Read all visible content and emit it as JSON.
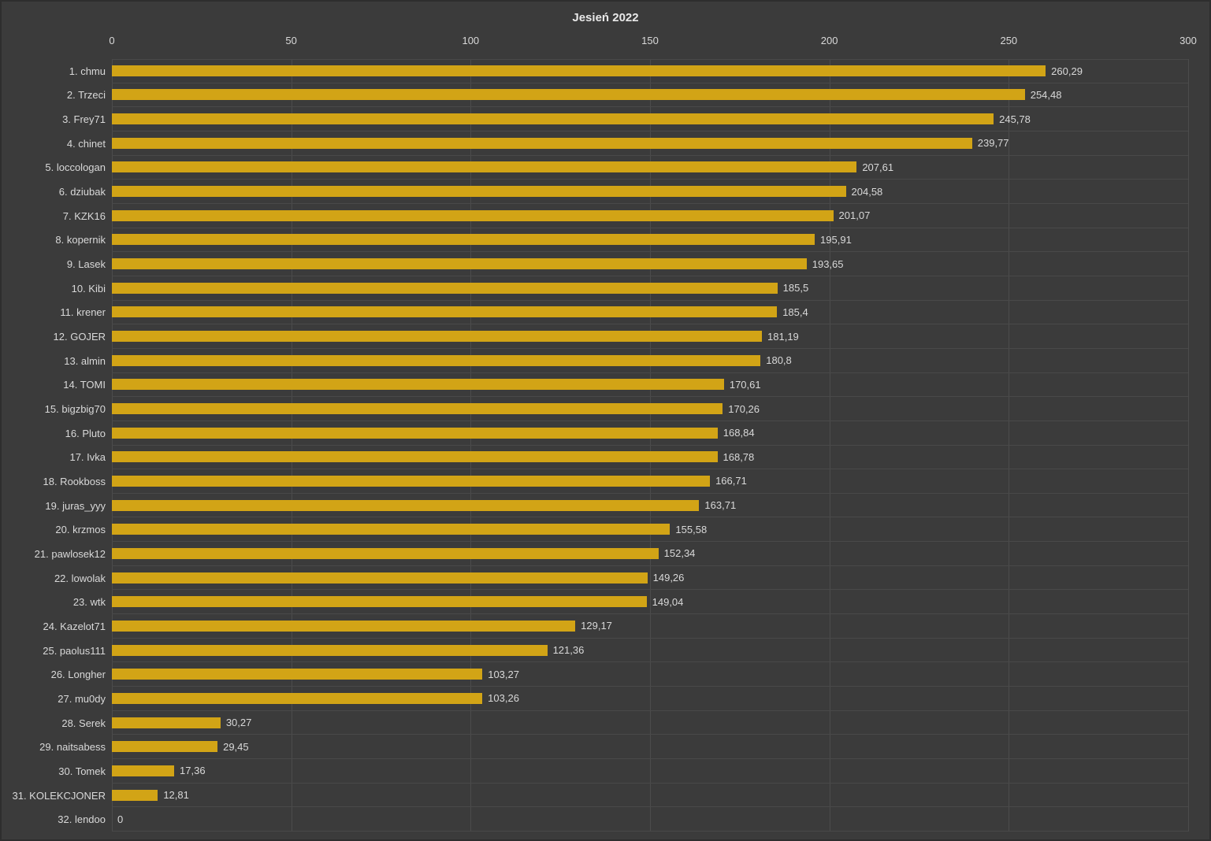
{
  "colors": {
    "background": "#3B3B3B",
    "bar": "#D2A416",
    "grid": "#4C4C4C",
    "text": "#D9D9D9"
  },
  "chart_data": {
    "type": "bar",
    "orientation": "horizontal",
    "title": "Jesień 2022",
    "xlabel": "",
    "ylabel": "",
    "xlim": [
      0,
      300
    ],
    "x_ticks": [
      0,
      50,
      100,
      150,
      200,
      250,
      300
    ],
    "grid": true,
    "legend": false,
    "categories": [
      "1. chmu",
      "2. Trzeci",
      "3. Frey71",
      "4. chinet",
      "5. loccologan",
      "6. dziubak",
      "7. KZK16",
      "8. kopernik",
      "9. Lasek",
      "10. Kibi",
      "11. krener",
      "12. GOJER",
      "13. almin",
      "14. TOMI",
      "15. bigzbig70",
      "16. Pluto",
      "17. Ivka",
      "18. Rookboss",
      "19. juras_yyy",
      "20. krzmos",
      "21. pawlosek12",
      "22. lowolak",
      "23. wtk",
      "24. Kazelot71",
      "25. paolus111",
      "26. Longher",
      "27. mu0dy",
      "28. Serek",
      "29. naitsabess",
      "30. Tomek",
      "31. KOLEKCJONER",
      "32. lendoo"
    ],
    "values": [
      260.29,
      254.48,
      245.78,
      239.77,
      207.61,
      204.58,
      201.07,
      195.91,
      193.65,
      185.5,
      185.4,
      181.19,
      180.8,
      170.61,
      170.26,
      168.84,
      168.78,
      166.71,
      163.71,
      155.58,
      152.34,
      149.26,
      149.04,
      129.17,
      121.36,
      103.27,
      103.26,
      30.27,
      29.45,
      17.36,
      12.81,
      0
    ],
    "value_labels": [
      "260,29",
      "254,48",
      "245,78",
      "239,77",
      "207,61",
      "204,58",
      "201,07",
      "195,91",
      "193,65",
      "185,5",
      "185,4",
      "181,19",
      "180,8",
      "170,61",
      "170,26",
      "168,84",
      "168,78",
      "166,71",
      "163,71",
      "155,58",
      "152,34",
      "149,26",
      "149,04",
      "129,17",
      "121,36",
      "103,27",
      "103,26",
      "30,27",
      "29,45",
      "17,36",
      "12,81",
      "0"
    ]
  }
}
